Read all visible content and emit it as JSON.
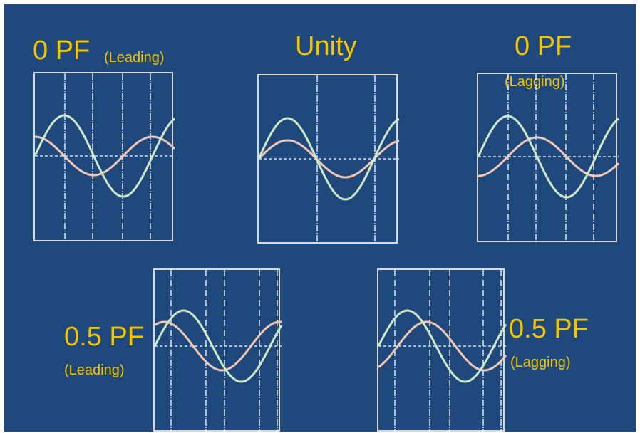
{
  "labels": {
    "zero_lead_main": "0 PF",
    "zero_lead_sub": "(Leading)",
    "unity_main": "Unity",
    "zero_lag_main": "0 PF",
    "zero_lag_sub": "(Lagging)",
    "half_lead_main": "0.5 PF",
    "half_lead_sub": "(Leading)",
    "half_lag_main": "0.5 PF",
    "half_lag_sub": "(Lagging)"
  },
  "colors": {
    "background": "#1f497d",
    "label": "#f5c400",
    "voltage_wave": "#cfe8c8",
    "current_wave": "#f2c6b4",
    "grid": "#ffffff",
    "frame": "#d9d9d9"
  },
  "panels": [
    {
      "id": "zero-pf-leading",
      "power_factor": 0,
      "phase_relation": "leading",
      "current_phase_shift_deg": 90
    },
    {
      "id": "unity",
      "power_factor": 1,
      "phase_relation": "in-phase",
      "current_phase_shift_deg": 0
    },
    {
      "id": "zero-pf-lagging",
      "power_factor": 0,
      "phase_relation": "lagging",
      "current_phase_shift_deg": -90
    },
    {
      "id": "half-pf-leading",
      "power_factor": 0.5,
      "phase_relation": "leading",
      "current_phase_shift_deg": 60
    },
    {
      "id": "half-pf-lagging",
      "power_factor": 0.5,
      "phase_relation": "lagging",
      "current_phase_shift_deg": -60
    }
  ]
}
